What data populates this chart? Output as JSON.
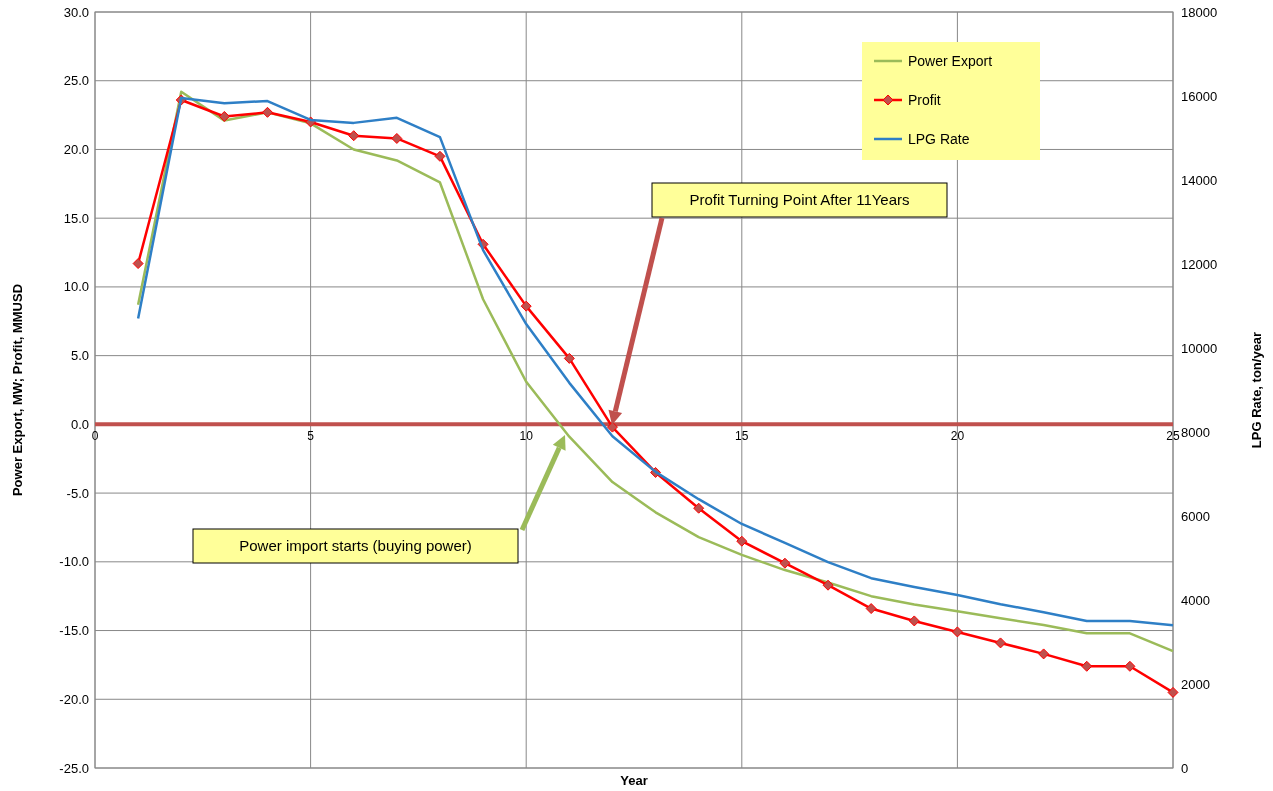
{
  "chart_data": {
    "type": "line",
    "xlabel": "Year",
    "ylabel": "Power Export, MW; Profit, MMUSD",
    "y2label": "LPG Rate, ton/year",
    "x": [
      1,
      2,
      3,
      4,
      5,
      6,
      7,
      8,
      9,
      10,
      11,
      12,
      13,
      14,
      15,
      16,
      17,
      18,
      19,
      20,
      21,
      22,
      23,
      24,
      25
    ],
    "series": [
      {
        "color": "#c0504d",
        "marker": "none",
        "x": [
          0,
          25
        ],
        "values": [
          0,
          0
        ]
      },
      {
        "name": "Power Export",
        "color": "#9bbb59",
        "marker": "none",
        "values": [
          8.7,
          24.2,
          22.1,
          22.7,
          21.9,
          20.0,
          19.2,
          17.6,
          9.1,
          3.1,
          -0.9,
          -4.2,
          -6.4,
          -8.2,
          -9.5,
          -10.6,
          -11.5,
          -12.5,
          -13.1,
          -13.6,
          -14.1,
          -14.6,
          -15.2,
          -15.2,
          -16.5
        ]
      },
      {
        "name": "Profit",
        "color": "#ff0000",
        "marker": "diamond",
        "values": [
          11.7,
          23.6,
          22.4,
          22.7,
          22.0,
          21.0,
          20.8,
          19.5,
          13.1,
          8.6,
          4.8,
          -0.2,
          -3.5,
          -6.1,
          -8.5,
          -10.1,
          -11.7,
          -13.4,
          -14.3,
          -15.1,
          -15.9,
          -16.7,
          -17.6,
          -17.6,
          -19.5
        ]
      },
      {
        "name": "LPG Rate",
        "color": "#2e7fc6",
        "marker": "none",
        "axis": "y2",
        "values": [
          10700,
          15950,
          15830,
          15880,
          15430,
          15360,
          15480,
          15020,
          12330,
          10570,
          9170,
          7900,
          7050,
          6400,
          5810,
          5360,
          4900,
          4520,
          4310,
          4120,
          3900,
          3710,
          3500,
          3500,
          3400
        ]
      }
    ],
    "xlim": [
      0,
      25
    ],
    "xticks": [
      0,
      5,
      10,
      15,
      20,
      25
    ],
    "ylim": [
      -25,
      30
    ],
    "yticks": [
      {
        "value": -25,
        "label": "-25.0"
      },
      {
        "value": -20,
        "label": "-20.0"
      },
      {
        "value": -15,
        "label": "-15.0"
      },
      {
        "value": -10,
        "label": "-10.0"
      },
      {
        "value": -5,
        "label": "-5.0"
      },
      {
        "value": 0,
        "label": "0.0"
      },
      {
        "value": 5,
        "label": "5.0"
      },
      {
        "value": 10,
        "label": "10.0"
      },
      {
        "value": 15,
        "label": "15.0"
      },
      {
        "value": 20,
        "label": "20.0"
      },
      {
        "value": 25,
        "label": "25.0"
      },
      {
        "value": 30,
        "label": "30.0"
      }
    ],
    "y2lim": [
      0,
      18000
    ],
    "y2ticks": [
      0,
      2000,
      4000,
      6000,
      8000,
      10000,
      12000,
      14000,
      16000,
      18000
    ],
    "annotations": [
      "Profit Turning Point After 11Years",
      "Power import starts (buying power)"
    ],
    "grid": true,
    "legend": "top right"
  }
}
